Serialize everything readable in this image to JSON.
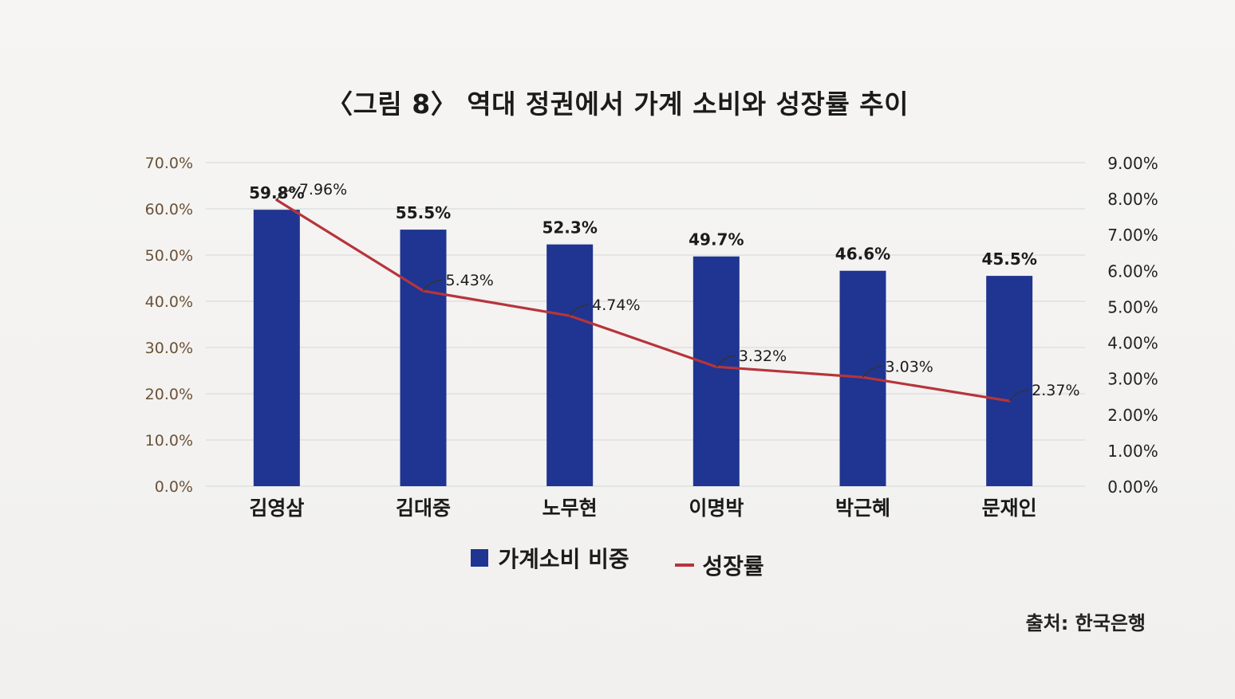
{
  "figure": {
    "title": "〈그림 8〉 역대 정권에서 가계 소비와 성장률 추이",
    "source": "출처: 한국은행"
  },
  "chart_data": {
    "type": "bar",
    "categories": [
      "김영삼",
      "김대중",
      "노무현",
      "이명박",
      "박근혜",
      "문재인"
    ],
    "series": [
      {
        "name": "가계소비 비중",
        "type": "bar",
        "axis": "left",
        "color": "#1f3591",
        "values": [
          59.8,
          55.5,
          52.3,
          49.7,
          46.6,
          45.5
        ],
        "labels": [
          "59.8%",
          "55.5%",
          "52.3%",
          "49.7%",
          "46.6%",
          "45.5%"
        ]
      },
      {
        "name": "성장률",
        "type": "line",
        "axis": "right",
        "color": "#b7343b",
        "values": [
          7.96,
          5.43,
          4.74,
          3.32,
          3.03,
          2.37
        ],
        "labels": [
          "7.96%",
          "5.43%",
          "4.74%",
          "3.32%",
          "3.03%",
          "2.37%"
        ]
      }
    ],
    "y_left": {
      "min": 0,
      "max": 70,
      "ticks": [
        "0.0%",
        "10.0%",
        "20.0%",
        "30.0%",
        "40.0%",
        "50.0%",
        "60.0%",
        "70.0%"
      ]
    },
    "y_right": {
      "min": 0,
      "max": 9,
      "ticks": [
        "0.00%",
        "1.00%",
        "2.00%",
        "3.00%",
        "4.00%",
        "5.00%",
        "6.00%",
        "7.00%",
        "8.00%",
        "9.00%"
      ]
    },
    "grid": true,
    "legend_position": "bottom"
  },
  "colors": {
    "bar": "#1f3591",
    "line": "#b7343b",
    "left_tick": "#6a5138",
    "grid": "#dcdcdc"
  }
}
